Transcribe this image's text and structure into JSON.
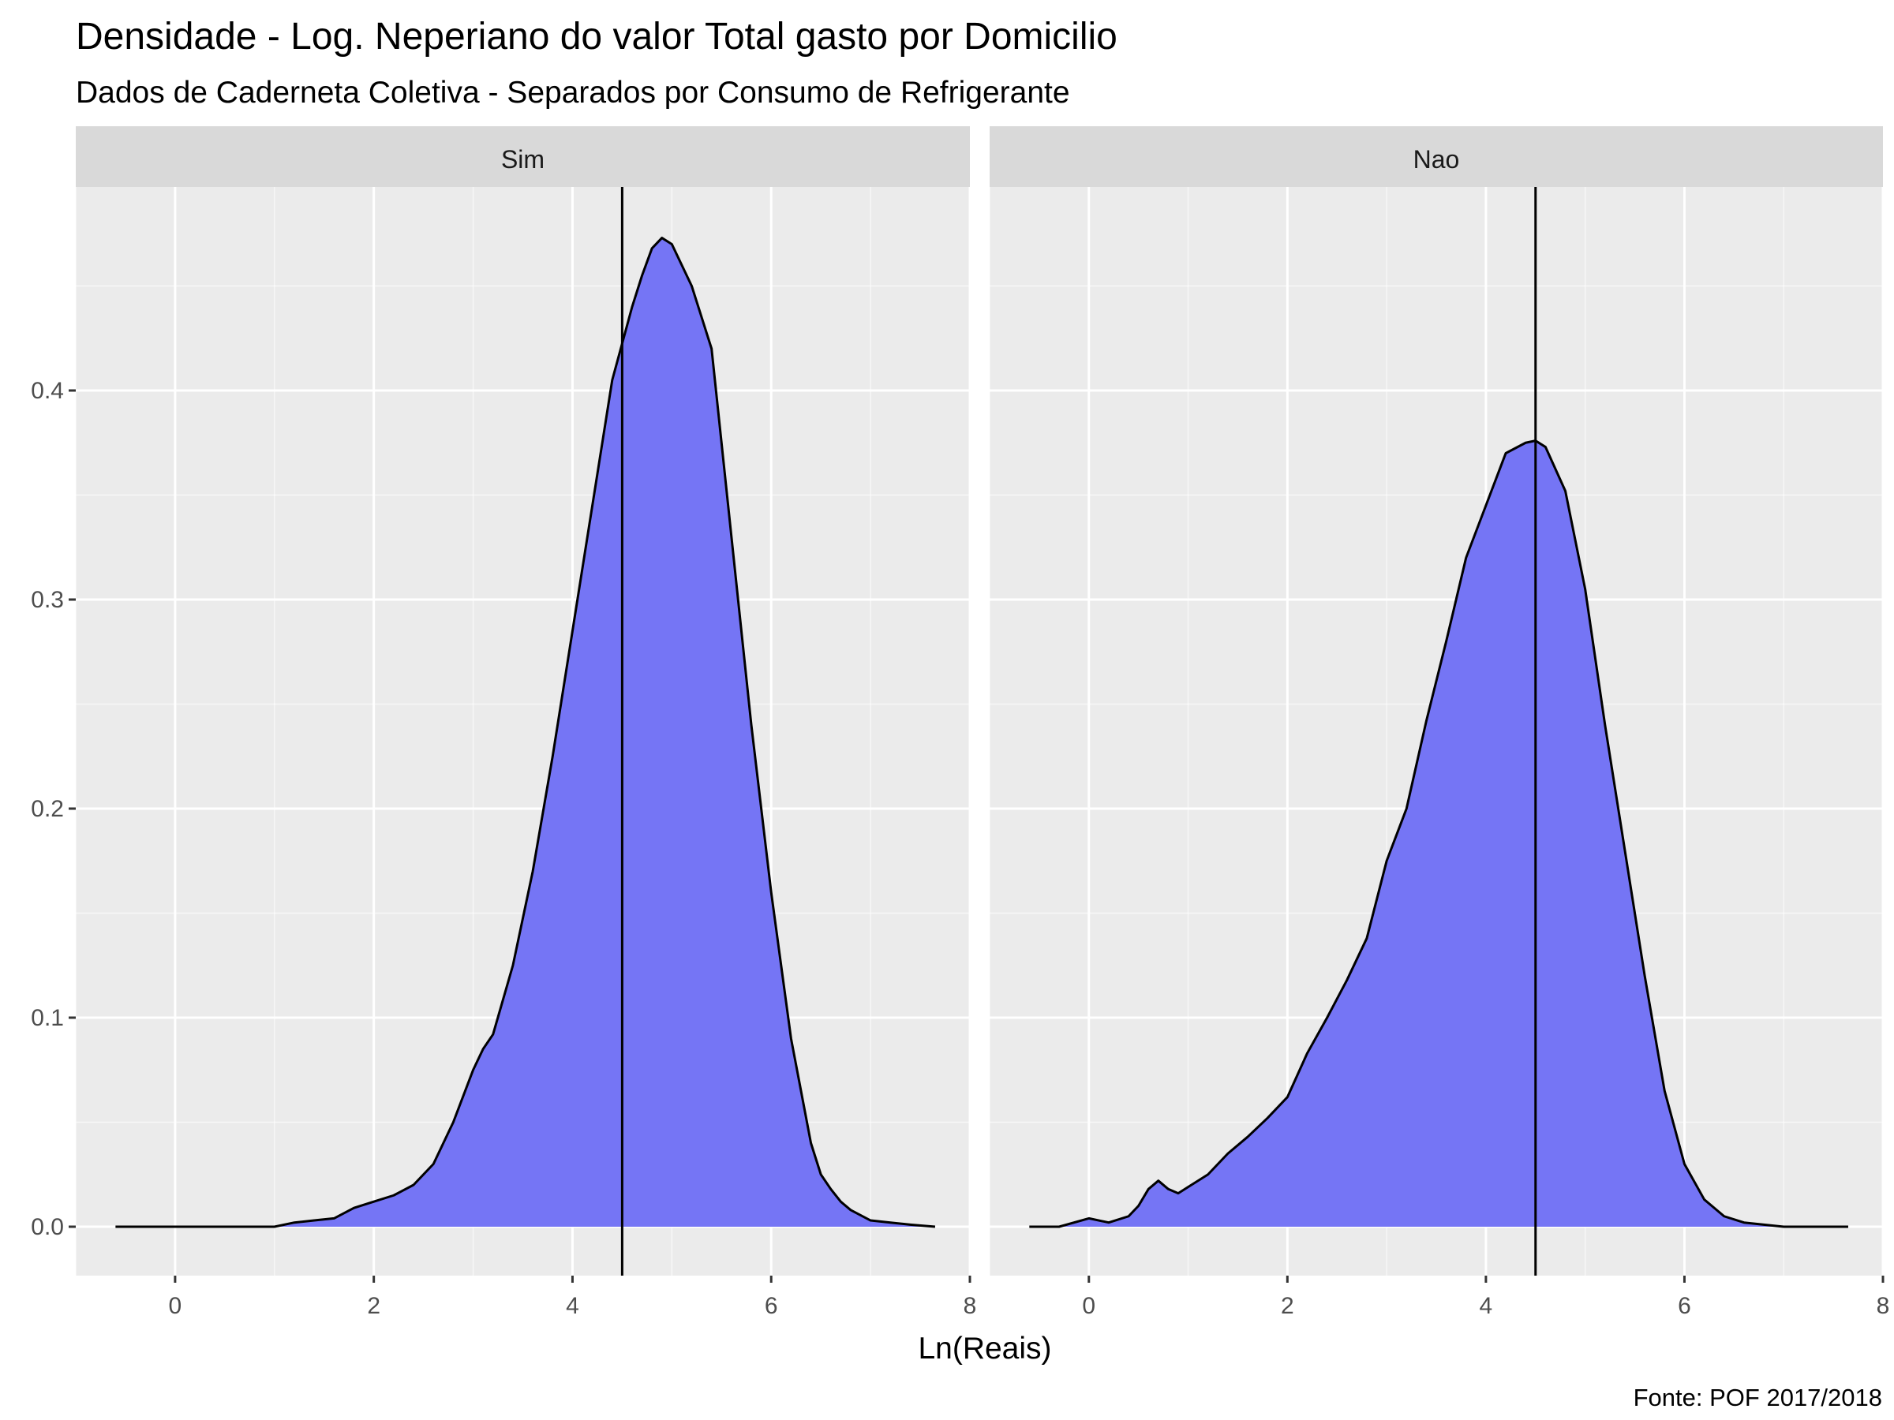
{
  "chart_data": {
    "type": "area",
    "title": "Densidade - Log. Neperiano do valor Total gasto por Domicilio",
    "subtitle": "Dados de Caderneta Coletiva - Separados por Consumo de Refrigerante",
    "xlabel": "Ln(Reais)",
    "ylabel": "",
    "caption": "Fonte: POF 2017/2018",
    "xlim": [
      -1,
      8
    ],
    "ylim": [
      -0.025,
      0.5
    ],
    "x_ticks": [
      0,
      2,
      4,
      6,
      8
    ],
    "y_ticks": [
      0.0,
      0.1,
      0.2,
      0.3,
      0.4
    ],
    "x_tick_labels": [
      "0",
      "2",
      "4",
      "6",
      "8"
    ],
    "y_tick_labels": [
      "0.0",
      "0.1",
      "0.2",
      "0.3",
      "0.4"
    ],
    "grid": true,
    "colors": {
      "fill": "#7575f5",
      "outline": "#000000",
      "panel_bg": "#ebebeb",
      "strip_bg": "#d9d9d9",
      "grid": "#ffffff"
    },
    "panels": [
      {
        "label": "Sim",
        "vline_x": 4.5,
        "x": [
          -0.6,
          0.0,
          0.5,
          1.0,
          1.2,
          1.4,
          1.6,
          1.8,
          2.0,
          2.2,
          2.4,
          2.6,
          2.8,
          3.0,
          3.1,
          3.2,
          3.4,
          3.6,
          3.8,
          4.0,
          4.2,
          4.4,
          4.6,
          4.7,
          4.8,
          4.9,
          5.0,
          5.1,
          5.2,
          5.4,
          5.6,
          5.8,
          6.0,
          6.2,
          6.4,
          6.5,
          6.6,
          6.7,
          6.8,
          7.0,
          7.2,
          7.4,
          7.65
        ],
        "y": [
          0.0,
          0.0,
          0.0,
          0.0,
          0.002,
          0.003,
          0.004,
          0.009,
          0.012,
          0.015,
          0.02,
          0.03,
          0.05,
          0.075,
          0.085,
          0.092,
          0.125,
          0.17,
          0.225,
          0.285,
          0.345,
          0.405,
          0.44,
          0.455,
          0.468,
          0.473,
          0.47,
          0.46,
          0.45,
          0.42,
          0.33,
          0.24,
          0.16,
          0.09,
          0.04,
          0.025,
          0.018,
          0.012,
          0.008,
          0.003,
          0.002,
          0.001,
          0.0
        ]
      },
      {
        "label": "Nao",
        "vline_x": 4.5,
        "x": [
          -0.6,
          -0.3,
          0.0,
          0.2,
          0.4,
          0.5,
          0.6,
          0.7,
          0.8,
          0.9,
          1.0,
          1.2,
          1.4,
          1.6,
          1.8,
          2.0,
          2.2,
          2.4,
          2.6,
          2.8,
          3.0,
          3.2,
          3.4,
          3.6,
          3.8,
          4.0,
          4.2,
          4.4,
          4.5,
          4.6,
          4.8,
          5.0,
          5.2,
          5.4,
          5.6,
          5.8,
          6.0,
          6.2,
          6.4,
          6.6,
          6.8,
          7.0,
          7.2,
          7.4,
          7.65
        ],
        "y": [
          0.0,
          0.0,
          0.004,
          0.002,
          0.005,
          0.01,
          0.018,
          0.022,
          0.018,
          0.016,
          0.019,
          0.025,
          0.035,
          0.043,
          0.052,
          0.062,
          0.083,
          0.1,
          0.118,
          0.138,
          0.175,
          0.2,
          0.242,
          0.28,
          0.32,
          0.345,
          0.37,
          0.375,
          0.376,
          0.373,
          0.352,
          0.305,
          0.24,
          0.18,
          0.12,
          0.065,
          0.03,
          0.013,
          0.005,
          0.002,
          0.001,
          0.0,
          0.0,
          0.0,
          0.0
        ]
      }
    ]
  }
}
